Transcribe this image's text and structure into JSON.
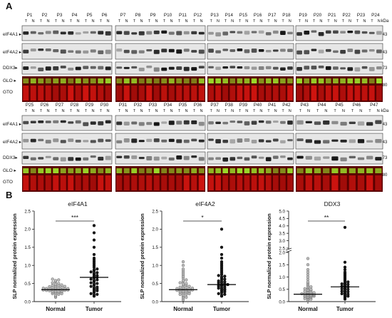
{
  "panel_a": {
    "label": "A",
    "unit": "kDa",
    "lanes": [
      "T",
      "N"
    ],
    "rows": [
      {
        "patients": [
          "P1",
          "P2",
          "P3",
          "P4",
          "P5",
          "P6",
          "P7",
          "P8",
          "P9",
          "P10",
          "P11",
          "P12",
          "P13",
          "P14",
          "P15",
          "P16",
          "P17",
          "P18",
          "P19",
          "P20",
          "P21",
          "P22",
          "P23",
          "P24"
        ]
      },
      {
        "patients": [
          "P25",
          "P26",
          "P27",
          "P28",
          "P29",
          "P30",
          "P31",
          "P32",
          "P33",
          "P34",
          "P35",
          "P36",
          "P37",
          "P38",
          "P39",
          "P40",
          "P41",
          "P42",
          "P43",
          "P44",
          "P45",
          "P46",
          "P47"
        ]
      }
    ],
    "bands": [
      {
        "name": "eIF4A1",
        "label": "eIF4A1 ▸",
        "kda": "43"
      },
      {
        "name": "eIF4A2",
        "label": "eIF4A2 ▸",
        "kda": "43"
      },
      {
        "name": "DDX3",
        "label": "DDX3▸",
        "kda": "73"
      },
      {
        "name": "GLO",
        "label": "GLO ▸",
        "kda": "80"
      },
      {
        "name": "GTO",
        "label": "GTO",
        "kda": ""
      }
    ]
  },
  "panel_b": {
    "label": "B",
    "chart_data": [
      {
        "type": "scatter",
        "title": "eIF4A1",
        "ylabel": "SLP normalized protein expression",
        "categories": [
          "Normal",
          "Tumor"
        ],
        "yticks": [
          "0.0",
          "0.5",
          "1.0",
          "1.5",
          "2.0",
          "2.5"
        ],
        "ylim": [
          0,
          2.5
        ],
        "significance": "***",
        "medians": [
          0.33,
          0.67
        ],
        "series": [
          {
            "values": [
              0.12,
              0.15,
              0.18,
              0.2,
              0.22,
              0.22,
              0.24,
              0.25,
              0.26,
              0.27,
              0.28,
              0.28,
              0.29,
              0.3,
              0.3,
              0.31,
              0.31,
              0.32,
              0.32,
              0.33,
              0.33,
              0.34,
              0.34,
              0.35,
              0.35,
              0.36,
              0.36,
              0.37,
              0.38,
              0.38,
              0.39,
              0.4,
              0.41,
              0.42,
              0.43,
              0.44,
              0.45,
              0.46,
              0.48,
              0.5,
              0.52,
              0.55,
              0.58,
              0.6,
              0.62
            ]
          },
          {
            "values": [
              0.15,
              0.18,
              0.2,
              0.22,
              0.25,
              0.28,
              0.3,
              0.33,
              0.35,
              0.38,
              0.4,
              0.42,
              0.45,
              0.48,
              0.5,
              0.52,
              0.55,
              0.58,
              0.6,
              0.62,
              0.65,
              0.67,
              0.7,
              0.72,
              0.75,
              0.78,
              0.8,
              0.82,
              0.85,
              0.88,
              0.9,
              0.95,
              1.0,
              1.05,
              1.1,
              1.15,
              1.2,
              1.3,
              1.5,
              1.7,
              1.9,
              2.1
            ]
          }
        ]
      },
      {
        "type": "scatter",
        "title": "eIF4A2",
        "ylabel": "SLP normalized protein expression",
        "categories": [
          "Normal",
          "Tumor"
        ],
        "yticks": [
          "0.0",
          "0.5",
          "1.0",
          "1.5",
          "2.0",
          "2.5"
        ],
        "ylim": [
          0,
          2.5
        ],
        "significance": "*",
        "medians": [
          0.33,
          0.47
        ],
        "series": [
          {
            "values": [
              0.05,
              0.1,
              0.12,
              0.15,
              0.18,
              0.2,
              0.2,
              0.22,
              0.24,
              0.25,
              0.26,
              0.27,
              0.28,
              0.29,
              0.3,
              0.3,
              0.31,
              0.32,
              0.33,
              0.33,
              0.34,
              0.35,
              0.36,
              0.37,
              0.38,
              0.39,
              0.4,
              0.42,
              0.44,
              0.46,
              0.48,
              0.5,
              0.52,
              0.55,
              0.58,
              0.6,
              0.65,
              0.7,
              0.75,
              0.8,
              0.85,
              0.9,
              1.0,
              1.1
            ]
          },
          {
            "values": [
              0.15,
              0.18,
              0.2,
              0.22,
              0.25,
              0.27,
              0.3,
              0.32,
              0.33,
              0.35,
              0.37,
              0.38,
              0.4,
              0.42,
              0.44,
              0.45,
              0.46,
              0.47,
              0.48,
              0.5,
              0.52,
              0.54,
              0.55,
              0.57,
              0.6,
              0.62,
              0.65,
              0.68,
              0.7,
              0.72,
              0.75,
              0.8,
              0.85,
              0.9,
              0.95,
              1.0,
              1.05,
              1.1,
              1.2,
              1.3,
              1.5,
              2.0
            ]
          }
        ]
      },
      {
        "type": "scatter",
        "title": "DDX3",
        "ylabel": "SLP normalized protein expression",
        "categories": [
          "Normal",
          "Tumor"
        ],
        "yticks": [
          "0.0",
          "0.5",
          "1.0",
          "1.5",
          "2.0",
          "2.5",
          "3.0",
          "3.5",
          "4.0",
          "4.5",
          "5.0"
        ],
        "ylim": [
          0,
          5
        ],
        "axis_break": true,
        "significance": "**",
        "medians": [
          0.3,
          0.6
        ],
        "series": [
          {
            "values": [
              0.05,
              0.08,
              0.1,
              0.12,
              0.15,
              0.17,
              0.18,
              0.2,
              0.2,
              0.22,
              0.23,
              0.25,
              0.25,
              0.27,
              0.28,
              0.28,
              0.3,
              0.3,
              0.32,
              0.33,
              0.34,
              0.35,
              0.36,
              0.38,
              0.4,
              0.42,
              0.44,
              0.46,
              0.48,
              0.5,
              0.52,
              0.55,
              0.58,
              0.6,
              0.65,
              0.7,
              0.75,
              0.8,
              0.9,
              1.0,
              1.1,
              1.2,
              1.3,
              1.5,
              1.75
            ]
          },
          {
            "values": [
              0.1,
              0.15,
              0.2,
              0.22,
              0.25,
              0.28,
              0.3,
              0.32,
              0.35,
              0.38,
              0.4,
              0.42,
              0.45,
              0.48,
              0.5,
              0.52,
              0.55,
              0.58,
              0.6,
              0.62,
              0.65,
              0.68,
              0.7,
              0.72,
              0.75,
              0.78,
              0.8,
              0.85,
              0.9,
              0.95,
              1.0,
              1.05,
              1.1,
              1.15,
              1.2,
              1.3,
              1.4,
              1.6,
              3.9
            ]
          }
        ]
      }
    ]
  }
}
